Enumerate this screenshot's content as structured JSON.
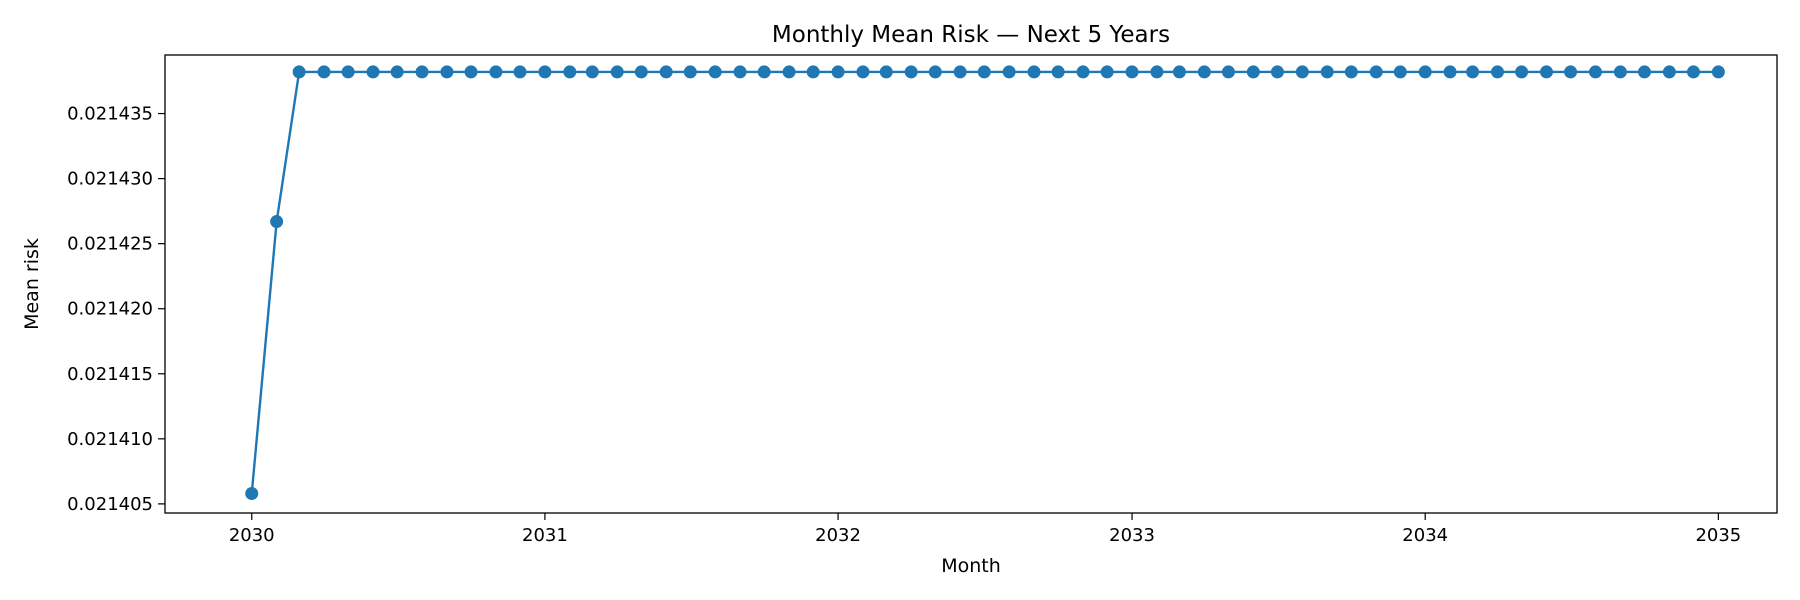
{
  "chart_data": {
    "type": "line",
    "title": "Monthly Mean Risk — Next 5 Years",
    "xlabel": "Month",
    "ylabel": "Mean risk",
    "x_ticks": [
      "2030",
      "2031",
      "2032",
      "2033",
      "2034",
      "2035"
    ],
    "y_ticks": [
      "0.021405",
      "0.021410",
      "0.021415",
      "0.021420",
      "0.021425",
      "0.021430",
      "0.021435"
    ],
    "xlim": [
      "2029-09-15",
      "2035-03-15"
    ],
    "ylim": [
      0.0214043,
      0.0214395
    ],
    "grid": false,
    "marker": "circle",
    "color": "#1f77b4",
    "series": [
      {
        "x": [
          "2030-01-01",
          "2030-02-01",
          "2030-03-01",
          "2030-04-01",
          "2030-05-01",
          "2030-06-01",
          "2030-07-01",
          "2030-08-01",
          "2030-09-01",
          "2030-10-01",
          "2030-11-01",
          "2030-12-01",
          "2031-01-01",
          "2031-02-01",
          "2031-03-01",
          "2031-04-01",
          "2031-05-01",
          "2031-06-01",
          "2031-07-01",
          "2031-08-01",
          "2031-09-01",
          "2031-10-01",
          "2031-11-01",
          "2031-12-01",
          "2032-01-01",
          "2032-02-01",
          "2032-03-01",
          "2032-04-01",
          "2032-05-01",
          "2032-06-01",
          "2032-07-01",
          "2032-08-01",
          "2032-09-01",
          "2032-10-01",
          "2032-11-01",
          "2032-12-01",
          "2033-01-01",
          "2033-02-01",
          "2033-03-01",
          "2033-04-01",
          "2033-05-01",
          "2033-06-01",
          "2033-07-01",
          "2033-08-01",
          "2033-09-01",
          "2033-10-01",
          "2033-11-01",
          "2033-12-01",
          "2034-01-01",
          "2034-02-01",
          "2034-03-01",
          "2034-04-01",
          "2034-05-01",
          "2034-06-01",
          "2034-07-01",
          "2034-08-01",
          "2034-09-01",
          "2034-10-01",
          "2034-11-01",
          "2034-12-01",
          "2035-01-01"
        ],
        "values": [
          0.0214058,
          0.0214267,
          0.0214382,
          0.0214382,
          0.0214382,
          0.0214382,
          0.0214382,
          0.0214382,
          0.0214382,
          0.0214382,
          0.0214382,
          0.0214382,
          0.0214382,
          0.0214382,
          0.0214382,
          0.0214382,
          0.0214382,
          0.0214382,
          0.0214382,
          0.0214382,
          0.0214382,
          0.0214382,
          0.0214382,
          0.0214382,
          0.0214382,
          0.0214382,
          0.0214382,
          0.0214382,
          0.0214382,
          0.0214382,
          0.0214382,
          0.0214382,
          0.0214382,
          0.0214382,
          0.0214382,
          0.0214382,
          0.0214382,
          0.0214382,
          0.0214382,
          0.0214382,
          0.0214382,
          0.0214382,
          0.0214382,
          0.0214382,
          0.0214382,
          0.0214382,
          0.0214382,
          0.0214382,
          0.0214382,
          0.0214382,
          0.0214382,
          0.0214382,
          0.0214382,
          0.0214382,
          0.0214382,
          0.0214382,
          0.0214382,
          0.0214382,
          0.0214382,
          0.0214382,
          0.0214382
        ]
      }
    ]
  }
}
